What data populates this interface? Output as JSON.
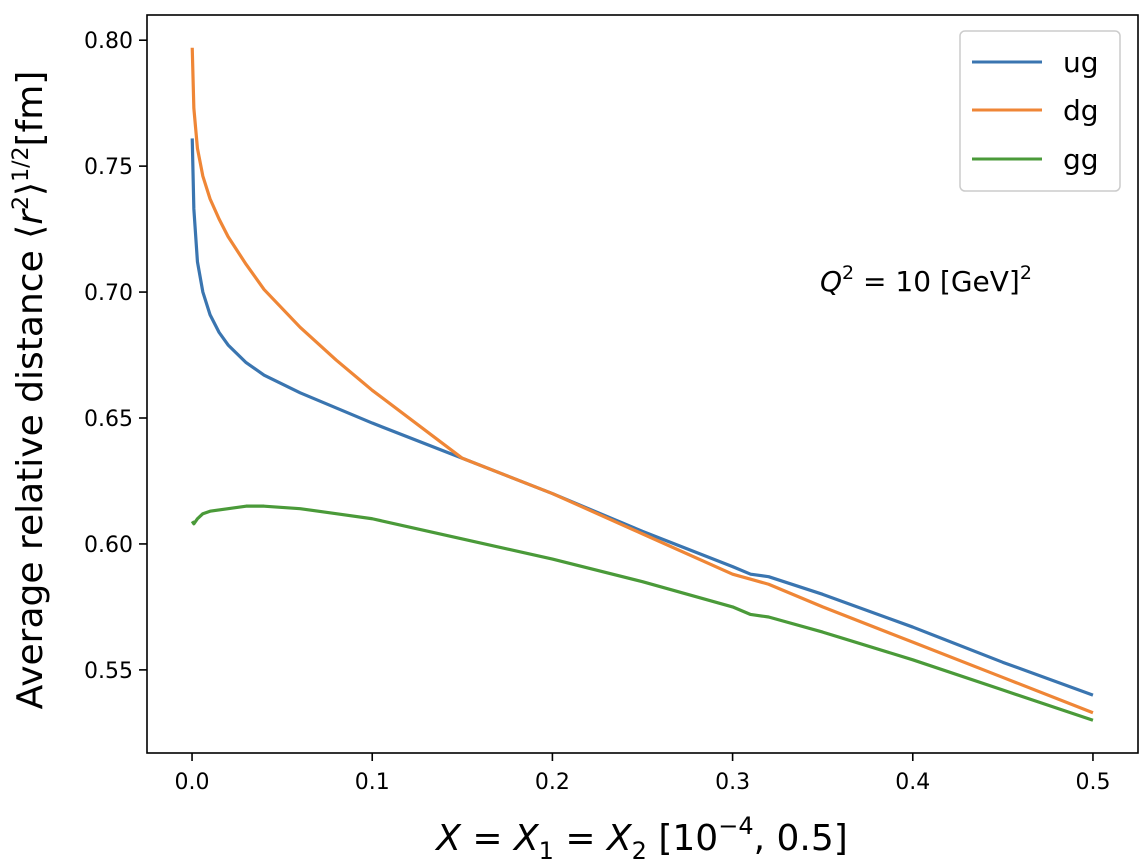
{
  "chart_data": {
    "type": "line",
    "xlabel": "X = X₁ = X₂ [10⁻⁴, 0.5]",
    "ylabel": "Average relative distance  ⟨r²⟩¹ᐟ²[fm]",
    "xlim": [
      -0.025,
      0.525
    ],
    "ylim": [
      0.517,
      0.81
    ],
    "xticks": [
      0.0,
      0.1,
      0.2,
      0.3,
      0.4,
      0.5
    ],
    "xtick_labels": [
      "0.0",
      "0.1",
      "0.2",
      "0.3",
      "0.4",
      "0.5"
    ],
    "yticks": [
      0.55,
      0.6,
      0.65,
      0.7,
      0.75,
      0.8
    ],
    "ytick_labels": [
      "0.55",
      "0.60",
      "0.65",
      "0.70",
      "0.75",
      "0.80"
    ],
    "grid": false,
    "legend_position": "top-right",
    "annotation": "Q² = 10 [GeV]²",
    "series": [
      {
        "name": "ug",
        "color": "#3a75b0",
        "x": [
          0.0001,
          0.001,
          0.003,
          0.006,
          0.01,
          0.015,
          0.02,
          0.03,
          0.04,
          0.06,
          0.08,
          0.1,
          0.15,
          0.2,
          0.25,
          0.3,
          0.31,
          0.32,
          0.35,
          0.4,
          0.45,
          0.5
        ],
        "y": [
          0.761,
          0.733,
          0.712,
          0.7,
          0.691,
          0.684,
          0.679,
          0.672,
          0.667,
          0.66,
          0.654,
          0.648,
          0.634,
          0.62,
          0.605,
          0.591,
          0.588,
          0.587,
          0.58,
          0.567,
          0.553,
          0.54
        ]
      },
      {
        "name": "dg",
        "color": "#ef8636",
        "x": [
          0.0001,
          0.001,
          0.003,
          0.006,
          0.01,
          0.015,
          0.02,
          0.03,
          0.04,
          0.06,
          0.08,
          0.1,
          0.15,
          0.2,
          0.25,
          0.3,
          0.31,
          0.32,
          0.35,
          0.4,
          0.45,
          0.5
        ],
        "y": [
          0.797,
          0.773,
          0.757,
          0.746,
          0.737,
          0.729,
          0.722,
          0.711,
          0.701,
          0.686,
          0.673,
          0.661,
          0.634,
          0.62,
          0.604,
          0.588,
          0.586,
          0.584,
          0.575,
          0.561,
          0.547,
          0.533
        ]
      },
      {
        "name": "gg",
        "color": "#4a9a39",
        "x": [
          0.0001,
          0.001,
          0.003,
          0.006,
          0.01,
          0.02,
          0.03,
          0.04,
          0.06,
          0.08,
          0.1,
          0.15,
          0.2,
          0.25,
          0.3,
          0.31,
          0.32,
          0.35,
          0.4,
          0.45,
          0.5
        ],
        "y": [
          0.609,
          0.608,
          0.61,
          0.612,
          0.613,
          0.614,
          0.615,
          0.615,
          0.614,
          0.612,
          0.61,
          0.602,
          0.594,
          0.585,
          0.575,
          0.572,
          0.571,
          0.565,
          0.554,
          0.542,
          0.53
        ]
      }
    ]
  }
}
